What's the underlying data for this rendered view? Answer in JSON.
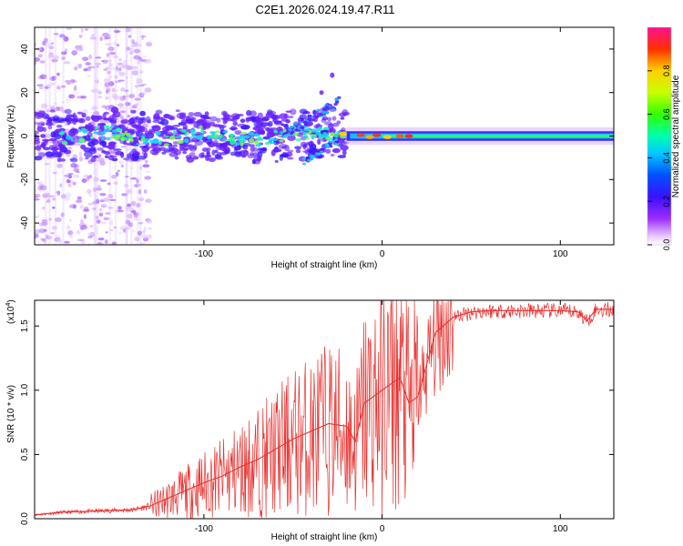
{
  "title": "C2E1.2026.024.19.47.R11",
  "colors": {
    "snr_line": "#e8312f",
    "axis": "#000000"
  },
  "chart_data": [
    {
      "type": "heatmap",
      "xlabel": "Height of straight line (km)",
      "ylabel": "Frequency (Hz)",
      "xlim": [
        -195,
        130
      ],
      "ylim": [
        -50,
        50
      ],
      "x_ticks": [
        -100,
        0,
        100
      ],
      "x_tick_labels": [
        "-100",
        "0",
        "100"
      ],
      "y_ticks": [
        -40,
        -20,
        0,
        20,
        40
      ],
      "y_tick_labels": [
        "-40",
        "-20",
        "0",
        "20",
        "40"
      ],
      "colorbar": {
        "label": "Normalized spectral amplitude",
        "range": [
          0.0,
          1.0
        ],
        "ticks": [
          0.0,
          0.2,
          0.4,
          0.6,
          0.8
        ],
        "tick_labels": [
          "0.0",
          "0.2",
          "0.4",
          "0.6",
          "0.8"
        ]
      },
      "grid": false
    },
    {
      "type": "line",
      "xlabel": "Height of straight line (km)",
      "ylabel": "SNR (10 * v/v)",
      "scale_label": "(x10",
      "scale_exp": "4",
      "scale_close": ")",
      "xlim": [
        -195,
        130
      ],
      "ylim": [
        0,
        17000
      ],
      "x_ticks": [
        -100,
        0,
        100
      ],
      "x_tick_labels": [
        "-100",
        "0",
        "100"
      ],
      "y_ticks": [
        0,
        5000,
        10000,
        15000
      ],
      "y_tick_labels": [
        "0.0",
        "0.5",
        "1.0",
        "1.5"
      ],
      "series": [
        {
          "name": "SNR",
          "x": [
            -195,
            -180,
            -160,
            -140,
            -130,
            -120,
            -110,
            -100,
            -90,
            -80,
            -70,
            -60,
            -50,
            -40,
            -30,
            -20,
            -15,
            -10,
            -5,
            0,
            5,
            10,
            15,
            20,
            25,
            30,
            40,
            50,
            60,
            80,
            100,
            110,
            115,
            120,
            130
          ],
          "values": [
            300,
            500,
            600,
            700,
            1000,
            1600,
            2200,
            2800,
            3300,
            4000,
            4600,
            5400,
            6200,
            6800,
            7400,
            7200,
            6000,
            9000,
            9500,
            10000,
            10500,
            11000,
            9000,
            9500,
            12000,
            14500,
            15700,
            16100,
            16200,
            16200,
            16200,
            16100,
            15400,
            16300,
            16300
          ]
        }
      ],
      "grid": false
    }
  ]
}
